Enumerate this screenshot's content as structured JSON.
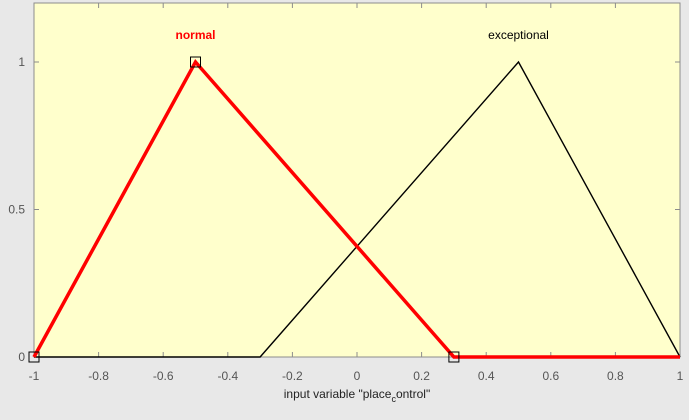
{
  "chart_data": {
    "type": "line",
    "title": "",
    "xlabel": "input variable \"place",
    "xlabel_subscript": "c",
    "xlabel_suffix": "ontrol\"",
    "ylabel": "",
    "xlim": [
      -1,
      1
    ],
    "ylim": [
      0,
      1.2
    ],
    "xticks": [
      -1,
      -0.8,
      -0.6,
      -0.4,
      -0.2,
      0,
      0.2,
      0.4,
      0.6,
      0.8,
      1
    ],
    "xtick_labels": [
      "-1",
      "-0.8",
      "-0.6",
      "-0.4",
      "-0.2",
      "0",
      "0.2",
      "0.4",
      "0.6",
      "0.8",
      "1"
    ],
    "yticks": [
      0,
      0.5,
      1
    ],
    "ytick_labels": [
      "0",
      "0.5",
      "1"
    ],
    "grid": false,
    "plot_background": "#ffffcc",
    "figure_background": "#e8e8e8",
    "series": [
      {
        "name": "normal",
        "selected": true,
        "color": "#ff0000",
        "label_x": -0.5,
        "x": [
          -1,
          -0.5,
          0.3,
          1
        ],
        "y": [
          0,
          1,
          0,
          0
        ],
        "handles": [
          -1,
          -0.5,
          0.3
        ]
      },
      {
        "name": "exceptional",
        "selected": false,
        "color": "#000000",
        "label_x": 0.5,
        "x": [
          -1,
          -0.3,
          0.5,
          1
        ],
        "y": [
          0,
          0,
          1,
          0
        ]
      }
    ]
  }
}
